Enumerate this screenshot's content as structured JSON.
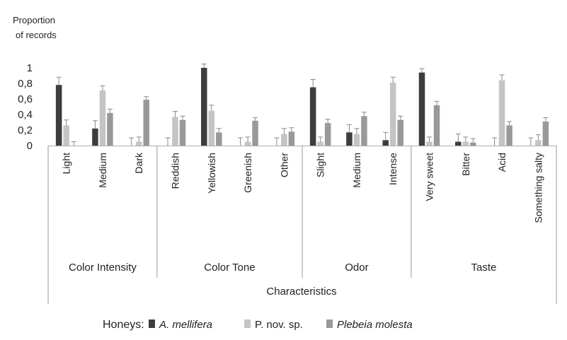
{
  "chart_data": {
    "type": "bar",
    "ylabel_lines": [
      "Proportion",
      "of records"
    ],
    "xlabel": "Characteristics",
    "ylim": [
      0,
      1
    ],
    "yticks": [
      {
        "value": 0,
        "label": "0"
      },
      {
        "value": 0.2,
        "label": "0,2"
      },
      {
        "value": 0.4,
        "label": "0,4"
      },
      {
        "value": 0.6,
        "label": "0,6"
      },
      {
        "value": 0.8,
        "label": "0,8"
      },
      {
        "value": 1,
        "label": "1"
      }
    ],
    "groups": [
      {
        "label": "Color Intensity",
        "categories": [
          "Light",
          "Medium",
          "Dark"
        ]
      },
      {
        "label": "Color Tone",
        "categories": [
          "Reddish",
          "Yellowish",
          "Greenish",
          "Other"
        ]
      },
      {
        "label": "Odor",
        "categories": [
          "Slight",
          "Medium",
          "Intense"
        ]
      },
      {
        "label": "Taste",
        "categories": [
          "Very sweet",
          "Bitter",
          "Acid",
          "Something salty"
        ]
      }
    ],
    "series": [
      {
        "name": "A. mellifera",
        "italic": true,
        "color": "#3d3d3d",
        "values": [
          0.78,
          0.22,
          0,
          0,
          1.0,
          0,
          0,
          0.75,
          0.17,
          0.07,
          0.94,
          0.05,
          0,
          0
        ],
        "errors": [
          0.1,
          0.1,
          0.1,
          0.1,
          0.05,
          0.1,
          0.1,
          0.1,
          0.1,
          0.1,
          0.05,
          0.1,
          0.1,
          0.1
        ]
      },
      {
        "name": "P. nov. sp.",
        "italic": false,
        "color": "#c4c4c4",
        "values": [
          0.26,
          0.71,
          0.05,
          0.37,
          0.45,
          0.05,
          0.15,
          0.05,
          0.15,
          0.81,
          0.05,
          0.05,
          0.84,
          0.07
        ],
        "errors": [
          0.07,
          0.06,
          0.06,
          0.07,
          0.07,
          0.06,
          0.07,
          0.06,
          0.07,
          0.07,
          0.06,
          0.06,
          0.07,
          0.07
        ]
      },
      {
        "name": "Plebeia molesta",
        "italic": true,
        "color": "#999999",
        "values": [
          0,
          0.42,
          0.59,
          0.33,
          0.17,
          0.32,
          0.18,
          0.29,
          0.38,
          0.33,
          0.52,
          0.04,
          0.26,
          0.31
        ],
        "errors": [
          0.05,
          0.05,
          0.04,
          0.05,
          0.05,
          0.04,
          0.05,
          0.05,
          0.05,
          0.05,
          0.05,
          0.05,
          0.05,
          0.05
        ]
      }
    ],
    "legend": {
      "title": "Honeys:",
      "position": "bottom"
    },
    "grid": false
  }
}
